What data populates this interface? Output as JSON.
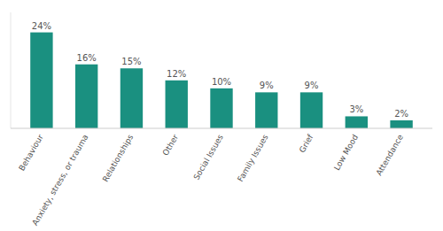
{
  "chart_data": {
    "type": "bar",
    "categories": [
      "Behaviour",
      "Anxiety, stress, or trauma",
      "Relationships",
      "Other",
      "Social Issues",
      "Family Issues",
      "Grief",
      "Low Mood",
      "Attendance"
    ],
    "values": [
      24,
      16,
      15,
      12,
      10,
      9,
      9,
      3,
      2
    ],
    "value_labels": [
      "24%",
      "16%",
      "15%",
      "12%",
      "10%",
      "9%",
      "9%",
      "3%",
      "2%"
    ],
    "color": "#1a9080",
    "ylim": [
      0,
      29
    ],
    "data_labels": true,
    "tick_labels": "x"
  }
}
